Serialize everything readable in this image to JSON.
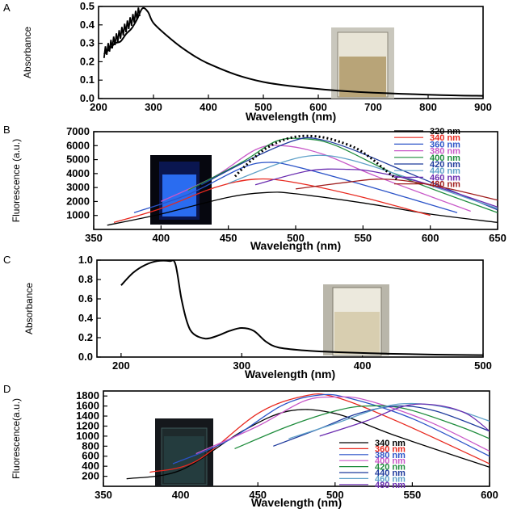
{
  "chart_data": [
    {
      "panel": "A",
      "type": "line",
      "xlabel": "Wavelength   (nm)",
      "ylabel": "Absorbance",
      "xlim": [
        200,
        900
      ],
      "ylim": [
        0,
        0.5
      ],
      "xticks": [
        "200",
        "300",
        "400",
        "500",
        "600",
        "700",
        "800",
        "900"
      ],
      "yticks": [
        "0.0",
        "0.1",
        "0.2",
        "0.3",
        "0.4",
        "0.5"
      ],
      "series": [
        {
          "color": "#000000",
          "x": [
            210,
            220,
            230,
            240,
            250,
            260,
            270,
            280,
            290,
            300,
            325,
            350,
            375,
            400,
            450,
            500,
            550,
            600,
            650,
            700,
            750,
            800,
            850,
            900
          ],
          "y": [
            0.24,
            0.27,
            0.3,
            0.31,
            0.35,
            0.38,
            0.43,
            0.49,
            0.47,
            0.41,
            0.34,
            0.28,
            0.23,
            0.19,
            0.13,
            0.09,
            0.068,
            0.052,
            0.04,
            0.032,
            0.026,
            0.021,
            0.017,
            0.015
          ]
        }
      ],
      "inset": "cuvette-yellow"
    },
    {
      "panel": "B",
      "type": "line",
      "xlabel": "Wavelength   (nm)",
      "ylabel": "Fluorescence (a.u.)",
      "xlim": [
        350,
        650
      ],
      "ylim": [
        0,
        7000
      ],
      "xticks": [
        "350",
        "400",
        "450",
        "500",
        "550",
        "600",
        "650"
      ],
      "yticks": [
        "1000",
        "2000",
        "3000",
        "4000",
        "5000",
        "6000",
        "7000"
      ],
      "series": [
        {
          "name": "320 nm",
          "color": "#000000",
          "x": [
            360,
            400,
            450,
            480,
            500,
            550,
            600,
            650
          ],
          "y": [
            300,
            1100,
            2300,
            2650,
            2550,
            1900,
            1100,
            500
          ]
        },
        {
          "name": "340 nm",
          "color": "#e8281e",
          "x": [
            365,
            400,
            440,
            470,
            500,
            550,
            600
          ],
          "y": [
            500,
            1500,
            3000,
            3600,
            3350,
            2300,
            1000
          ]
        },
        {
          "name": "360 nm",
          "color": "#2b53c8",
          "x": [
            380,
            420,
            460,
            480,
            500,
            550,
            620
          ],
          "y": [
            1200,
            2500,
            4400,
            4800,
            4500,
            3200,
            1200
          ]
        },
        {
          "name": "380 nm",
          "color": "#c858c8",
          "x": [
            400,
            440,
            470,
            490,
            520,
            560,
            630
          ],
          "y": [
            2000,
            3800,
            5700,
            6000,
            5400,
            3800,
            1300
          ]
        },
        {
          "name": "400 nm",
          "color": "#1e8c3c",
          "x": [
            420,
            460,
            485,
            505,
            530,
            580,
            650
          ],
          "y": [
            2800,
            4800,
            6300,
            6500,
            6000,
            3700,
            1200
          ]
        },
        {
          "name": "420 nm",
          "color": "#1e3a9c",
          "x": [
            430,
            470,
            500,
            515,
            540,
            590,
            650
          ],
          "y": [
            3200,
            5200,
            6400,
            6500,
            5800,
            3800,
            1400
          ]
        },
        {
          "name": "440 nm",
          "color": "#5ea0c8",
          "x": [
            450,
            490,
            515,
            540,
            580,
            650
          ],
          "y": [
            3300,
            4800,
            5300,
            5000,
            3800,
            1500
          ]
        },
        {
          "name": "460 nm",
          "color": "#6a2cb0",
          "x": [
            470,
            510,
            540,
            560,
            600,
            650
          ],
          "y": [
            3200,
            4200,
            4300,
            4100,
            3200,
            1600
          ]
        },
        {
          "name": "480 nm",
          "color": "#a01e1e",
          "x": [
            500,
            540,
            560,
            580,
            610,
            650
          ],
          "y": [
            2900,
            3400,
            3600,
            3500,
            3000,
            2100
          ]
        }
      ],
      "annotation": "dotted peak-shift trace",
      "inset": "cuvette-blue-glow"
    },
    {
      "panel": "C",
      "type": "line",
      "xlabel": "Wavelength   (nm)",
      "ylabel": "Absorbance",
      "xlim": [
        180,
        500
      ],
      "ylim": [
        0,
        1.0
      ],
      "xticks": [
        "200",
        "300",
        "400",
        "500"
      ],
      "yticks": [
        "0.0",
        "0.2",
        "0.4",
        "0.6",
        "0.8",
        "1.0"
      ],
      "series": [
        {
          "color": "#000000",
          "x": [
            200,
            210,
            220,
            230,
            240,
            245,
            250,
            255,
            260,
            270,
            280,
            290,
            300,
            310,
            320,
            330,
            350,
            380,
            420,
            460,
            500
          ],
          "y": [
            0.74,
            0.87,
            0.95,
            0.99,
            0.99,
            0.96,
            0.6,
            0.35,
            0.24,
            0.19,
            0.22,
            0.27,
            0.3,
            0.27,
            0.16,
            0.1,
            0.07,
            0.05,
            0.035,
            0.025,
            0.02
          ]
        }
      ],
      "inset": "cuvette-pale"
    },
    {
      "panel": "D",
      "type": "line",
      "xlabel": "Wavelength   (nm)",
      "ylabel": "Fluorescence(a.u.)",
      "xlim": [
        350,
        600
      ],
      "ylim": [
        0,
        1900
      ],
      "xticks": [
        "350",
        "400",
        "450",
        "500",
        "550",
        "600"
      ],
      "yticks": [
        "200",
        "400",
        "600",
        "800",
        "1000",
        "1200",
        "1400",
        "1600",
        "1800"
      ],
      "series": [
        {
          "name": "340 nm",
          "color": "#000000",
          "x": [
            365,
            400,
            440,
            470,
            500,
            540,
            600
          ],
          "y": [
            150,
            320,
            1100,
            1500,
            1450,
            1000,
            380
          ]
        },
        {
          "name": "360 nm",
          "color": "#e8281e",
          "x": [
            380,
            410,
            450,
            480,
            500,
            540,
            600
          ],
          "y": [
            280,
            500,
            1450,
            1800,
            1780,
            1300,
            450
          ]
        },
        {
          "name": "380 nm",
          "color": "#2b53c8",
          "x": [
            395,
            430,
            465,
            490,
            510,
            550,
            600
          ],
          "y": [
            450,
            900,
            1600,
            1820,
            1750,
            1350,
            600
          ]
        },
        {
          "name": "400 nm",
          "color": "#c858c8",
          "x": [
            410,
            450,
            480,
            500,
            520,
            560,
            600
          ],
          "y": [
            650,
            1200,
            1700,
            1780,
            1720,
            1300,
            700
          ]
        },
        {
          "name": "420 nm",
          "color": "#1e8c3c",
          "x": [
            435,
            470,
            500,
            520,
            545,
            580,
            600
          ],
          "y": [
            750,
            1200,
            1500,
            1600,
            1550,
            1200,
            950
          ]
        },
        {
          "name": "440 nm",
          "color": "#1e3a9c",
          "x": [
            460,
            490,
            515,
            540,
            565,
            600
          ],
          "y": [
            800,
            1150,
            1450,
            1600,
            1500,
            1100
          ]
        },
        {
          "name": "460 nm",
          "color": "#5ea0c8",
          "x": [
            470,
            500,
            530,
            550,
            575,
            600
          ],
          "y": [
            950,
            1250,
            1570,
            1650,
            1550,
            1300
          ]
        },
        {
          "name": "480 nm",
          "color": "#6a2cb0",
          "x": [
            490,
            520,
            545,
            565,
            585,
            600
          ],
          "y": [
            1000,
            1300,
            1600,
            1620,
            1450,
            1100
          ]
        }
      ],
      "inset": "cuvette-dark-cyan"
    }
  ]
}
